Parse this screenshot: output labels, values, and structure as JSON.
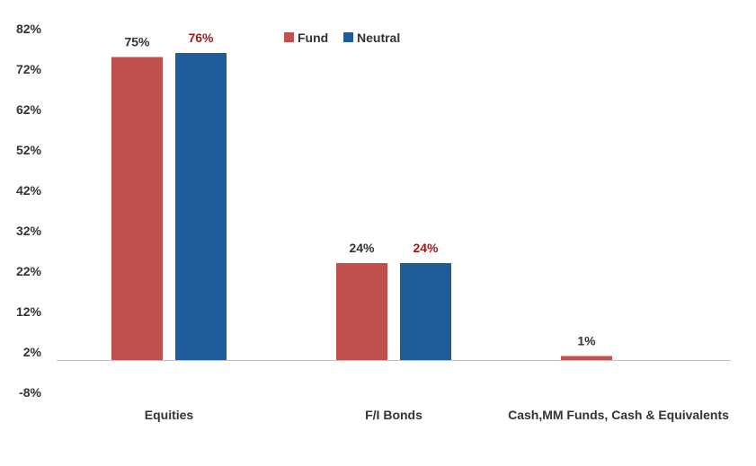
{
  "chart_data": {
    "type": "bar",
    "categories": [
      "Equities",
      "F/I Bonds",
      "Cash,MM Funds, Cash & Equivalents"
    ],
    "series": [
      {
        "name": "Fund",
        "values": [
          75,
          24,
          1
        ],
        "labels": [
          "75%",
          "24%",
          "1%"
        ],
        "color": "#c0504d",
        "label_color": "#333333"
      },
      {
        "name": "Neutral",
        "values": [
          76,
          24,
          0
        ],
        "labels": [
          "76%",
          "24%",
          ""
        ],
        "color": "#1f5c99",
        "label_color": "#9b1b1b"
      }
    ],
    "y_ticks": [
      "82%",
      "72%",
      "62%",
      "52%",
      "42%",
      "32%",
      "22%",
      "12%",
      "2%",
      "-8%"
    ],
    "ylim": [
      -8,
      82
    ],
    "baseline": 0,
    "legend_position": "top-center",
    "grid": false
  }
}
